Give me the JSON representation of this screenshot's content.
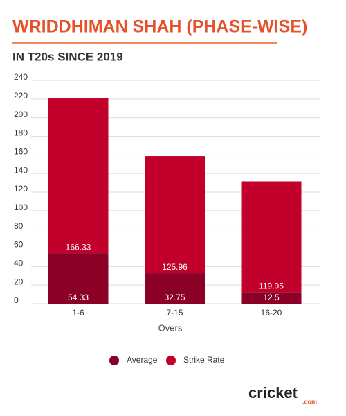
{
  "chart_data": {
    "type": "stacked_bar",
    "title": "WRIDDHIMAN SHAH (PHASE-WISE)",
    "subtitle": "IN T20s SINCE 2019",
    "x_label": "Overs",
    "categories": [
      "1-6",
      "7-15",
      "16-20"
    ],
    "series": [
      {
        "name": "Average",
        "color": "#8a0027",
        "values": [
          54.33,
          32.75,
          12.5
        ]
      },
      {
        "name": "Strike Rate",
        "color": "#c1002b",
        "values": [
          166.33,
          125.96,
          119.05
        ]
      }
    ],
    "ylim": [
      0,
      240
    ],
    "yticks": [
      0,
      20,
      40,
      60,
      80,
      100,
      120,
      140,
      160,
      180,
      200,
      220,
      240
    ],
    "grid": true,
    "legend": "bottom",
    "brand": "cricket",
    "brand_suffix": ".com"
  }
}
